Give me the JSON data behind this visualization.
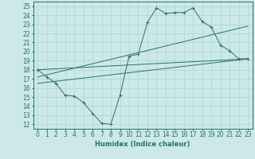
{
  "xlabel": "Humidex (Indice chaleur)",
  "ylabel": "",
  "bg_color": "#cce8e8",
  "line_color": "#2a7070",
  "grid_color": "#b0d8d8",
  "xlim": [
    -0.5,
    23.5
  ],
  "ylim": [
    11.5,
    25.5
  ],
  "yticks": [
    12,
    13,
    14,
    15,
    16,
    17,
    18,
    19,
    20,
    21,
    22,
    23,
    24,
    25
  ],
  "xticks": [
    0,
    1,
    2,
    3,
    4,
    5,
    6,
    7,
    8,
    9,
    10,
    11,
    12,
    13,
    14,
    15,
    16,
    17,
    18,
    19,
    20,
    21,
    22,
    23
  ],
  "series1_x": [
    0,
    1,
    2,
    3,
    4,
    5,
    6,
    7,
    8,
    9,
    10,
    11,
    12,
    13,
    14,
    15,
    16,
    17,
    18,
    19,
    20,
    21,
    22,
    23
  ],
  "series1_y": [
    18.0,
    17.2,
    16.5,
    15.2,
    15.1,
    14.4,
    13.2,
    12.1,
    12.0,
    15.2,
    19.5,
    19.7,
    23.2,
    24.8,
    24.2,
    24.3,
    24.3,
    24.8,
    23.3,
    22.7,
    20.7,
    20.1,
    19.2,
    19.2
  ],
  "series2_x": [
    0,
    23
  ],
  "series2_y": [
    18.0,
    19.2
  ],
  "series3_x": [
    0,
    23
  ],
  "series3_y": [
    17.2,
    22.8
  ],
  "series4_x": [
    0,
    23
  ],
  "series4_y": [
    16.5,
    19.2
  ],
  "font_size_label": 6,
  "font_size_tick": 5.5,
  "marker": "+"
}
